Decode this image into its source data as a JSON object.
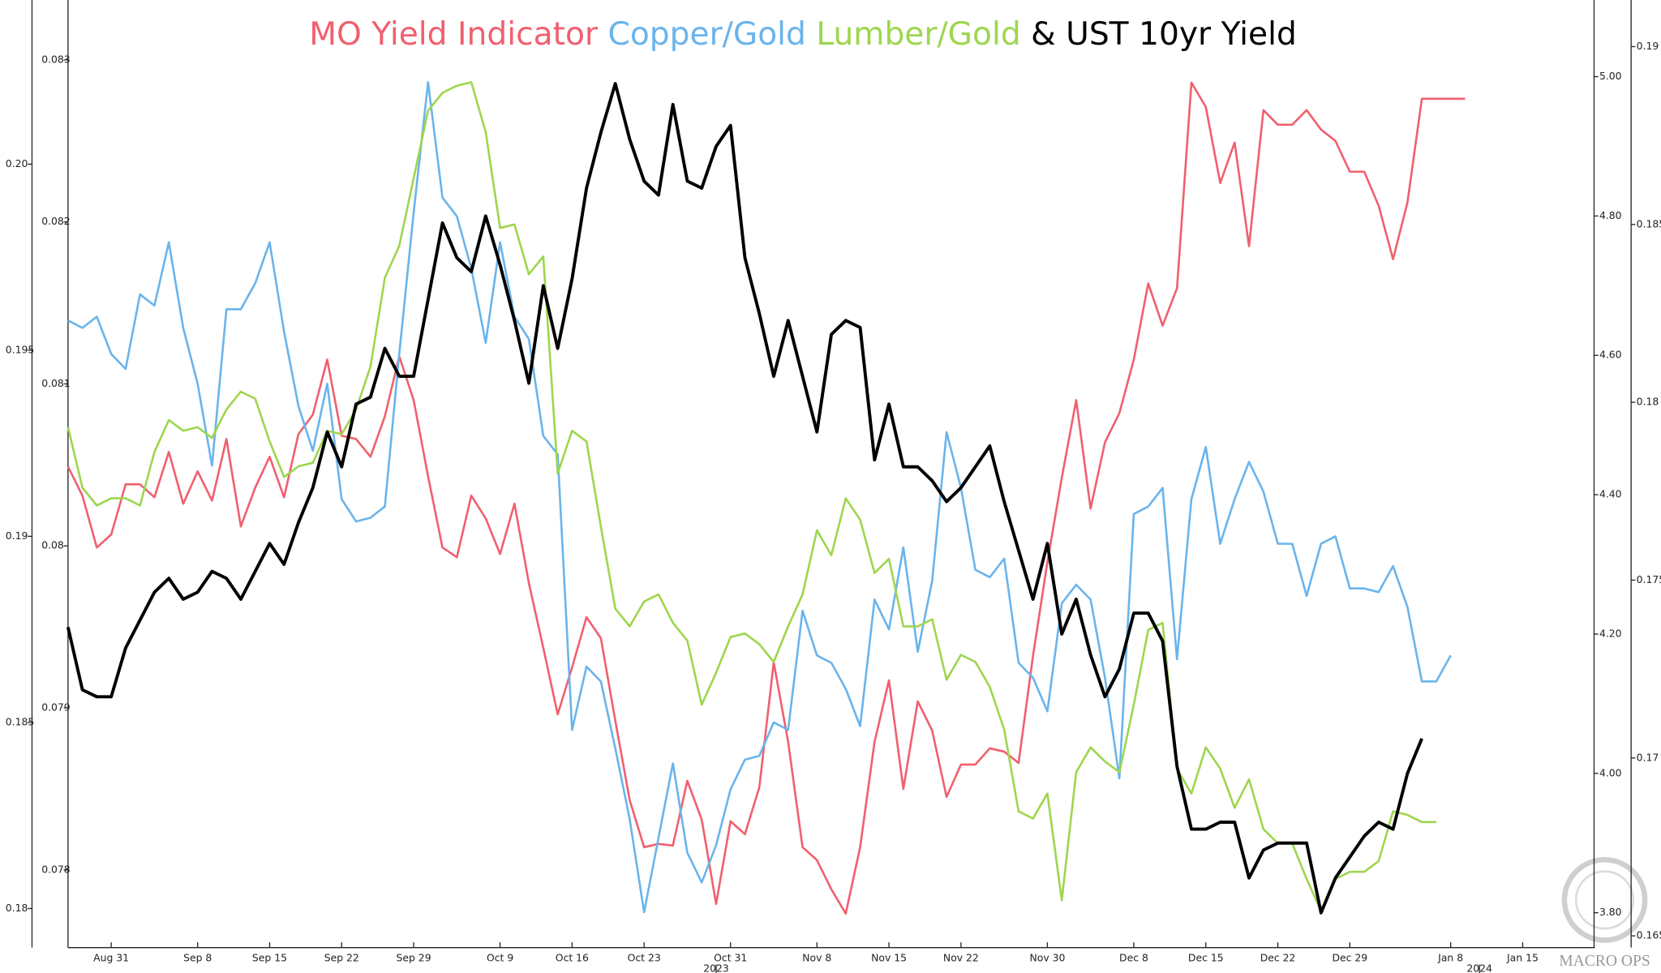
{
  "chart_data": {
    "type": "line",
    "title_conjunction": "&",
    "watermark": "MACRO OPS",
    "x": [
      0,
      1,
      2,
      3,
      4,
      5,
      6,
      7,
      8,
      9,
      10,
      11,
      12,
      13,
      14,
      15,
      16,
      17,
      18,
      19,
      20,
      21,
      22,
      23,
      24,
      25,
      26,
      27,
      28,
      29,
      30,
      31,
      32,
      33,
      34,
      35,
      36,
      37,
      38,
      39,
      40,
      41,
      42,
      43,
      44,
      45,
      46,
      47,
      48,
      49,
      50,
      51,
      52,
      53,
      54,
      55,
      56,
      57,
      58,
      59,
      60,
      61,
      62,
      63,
      64,
      65,
      66,
      67,
      68,
      69,
      70,
      71,
      72,
      73,
      74,
      75,
      76,
      77,
      78,
      79,
      80,
      81,
      82,
      83,
      84,
      85,
      86,
      87,
      88,
      89,
      90,
      91,
      92,
      93,
      94,
      95,
      96,
      97
    ],
    "xlim": [
      0,
      106
    ],
    "xticks": [
      {
        "value": 3,
        "label": "Aug 31"
      },
      {
        "value": 9,
        "label": "Sep 8"
      },
      {
        "value": 14,
        "label": "Sep 15"
      },
      {
        "value": 19,
        "label": "Sep 22"
      },
      {
        "value": 24,
        "label": "Sep 29"
      },
      {
        "value": 30,
        "label": "Oct 9"
      },
      {
        "value": 35,
        "label": "Oct 16"
      },
      {
        "value": 40,
        "label": "Oct 23"
      },
      {
        "value": 46,
        "label": "Oct 31"
      },
      {
        "value": 52,
        "label": "Nov 8"
      },
      {
        "value": 57,
        "label": "Nov 15"
      },
      {
        "value": 62,
        "label": "Nov 22"
      },
      {
        "value": 68,
        "label": "Nov 30"
      },
      {
        "value": 74,
        "label": "Dec 8"
      },
      {
        "value": 79,
        "label": "Dec 15"
      },
      {
        "value": 84,
        "label": "Dec 22"
      },
      {
        "value": 89,
        "label": "Dec 29"
      },
      {
        "value": 96,
        "label": "Jan 8"
      },
      {
        "value": 101,
        "label": "Jan 15"
      }
    ],
    "xticks_major": [
      {
        "value": 45,
        "label": "2023"
      },
      {
        "value": 98,
        "label": "2024"
      }
    ],
    "ylim": [
      0.17895,
      0.20441
    ],
    "yticks": [
      0.18,
      0.185,
      0.19,
      0.195,
      {
        "value": 0.2,
        "label": "0.20"
      }
    ],
    "y3lim": [
      0.07752,
      0.08337
    ],
    "y3ticks": [
      0.078,
      0.079,
      0.08,
      0.081,
      0.082,
      0.083
    ],
    "y2lim": [
      3.75,
      5.11
    ],
    "y2ticks": [
      {
        "value": 3.8,
        "label": "3.80"
      },
      {
        "value": 4,
        "label": "4.00"
      },
      {
        "value": 4.2,
        "label": "4.20"
      },
      {
        "value": 4.4,
        "label": "4.40"
      },
      {
        "value": 4.6,
        "label": "4.60"
      },
      {
        "value": 4.8,
        "label": "4.80"
      },
      {
        "value": 5,
        "label": "5.00"
      }
    ],
    "y4lim": [
      0.16467,
      0.19131
    ],
    "y4ticks": [
      0.165,
      0.17,
      0.175,
      0.18,
      0.185,
      0.19
    ],
    "series": [
      {
        "name": "MO Yield Indicator",
        "color": "#f0606e",
        "axis": "y3",
        "values": [
          0.08049,
          0.08031,
          0.07999,
          0.08007,
          0.08038,
          0.08038,
          0.0803,
          0.08058,
          0.08026,
          0.08046,
          0.08028,
          0.08066,
          0.08012,
          0.08036,
          0.08055,
          0.0803,
          0.08069,
          0.08081,
          0.08115,
          0.08068,
          0.08066,
          0.08055,
          0.0808,
          0.08117,
          0.0809,
          0.08043,
          0.07999,
          0.07993,
          0.08031,
          0.08017,
          0.07995,
          0.08026,
          0.07977,
          0.07937,
          0.07896,
          0.07925,
          0.07956,
          0.07943,
          0.07892,
          0.07843,
          0.07814,
          0.07816,
          0.07815,
          0.07855,
          0.07831,
          0.07779,
          0.0783,
          0.07822,
          0.07851,
          0.07928,
          0.07879,
          0.07814,
          0.07806,
          0.07788,
          0.07773,
          0.07814,
          0.07879,
          0.07917,
          0.0785,
          0.07904,
          0.07886,
          0.07845,
          0.07865,
          0.07865,
          0.07875,
          0.07873,
          0.07866,
          0.07932,
          0.0799,
          0.08042,
          0.0809,
          0.08023,
          0.08064,
          0.08082,
          0.08115,
          0.08162,
          0.08136,
          0.08159,
          0.08286,
          0.08271,
          0.08224,
          0.08249,
          0.08185,
          0.08269,
          0.0826,
          0.0826,
          0.08269,
          0.08257,
          0.0825,
          0.08231,
          0.08231,
          0.0821,
          0.08177,
          0.08212,
          0.08276,
          0.08276,
          0.08276,
          0.08276
        ]
      },
      {
        "name": "Copper/Gold",
        "color": "#6ab4ec",
        "axis": "y",
        "values": [
          0.1958,
          0.1956,
          0.1959,
          0.1949,
          0.1945,
          0.1965,
          0.1962,
          0.1979,
          0.1956,
          0.1941,
          0.1919,
          0.1961,
          0.1961,
          0.1968,
          0.1979,
          0.1955,
          0.1935,
          0.1923,
          0.1941,
          0.191,
          0.1904,
          0.1905,
          0.1908,
          0.1949,
          0.1987,
          0.2022,
          0.1991,
          0.1986,
          0.1972,
          0.1952,
          0.1979,
          0.1959,
          0.1953,
          0.1927,
          0.1922,
          0.1848,
          0.1865,
          0.1861,
          0.1843,
          0.1824,
          0.1799,
          0.1819,
          0.1839,
          0.1815,
          0.1807,
          0.1817,
          0.1832,
          0.184,
          0.1841,
          0.185,
          0.1848,
          0.188,
          0.1868,
          0.1866,
          0.1859,
          0.1849,
          0.1883,
          0.1875,
          0.1897,
          0.1869,
          0.1888,
          0.1928,
          0.1913,
          0.1891,
          0.1889,
          0.1894,
          0.1866,
          0.1862,
          0.1853,
          0.1882,
          0.1887,
          0.1883,
          0.1862,
          0.1835,
          0.1906,
          0.1908,
          0.1913,
          0.1867,
          0.191,
          0.1924,
          0.1898,
          0.191,
          0.192,
          0.1912,
          0.1898,
          0.1898,
          0.1884,
          0.1898,
          0.19,
          0.1886,
          0.1886,
          0.1885,
          0.1892,
          0.1881,
          0.1861,
          0.1861,
          0.1868,
          null
        ]
      },
      {
        "name": "Lumber/Gold",
        "color": "#9ed64e",
        "axis": "y4",
        "values": [
          0.1793,
          0.1776,
          0.1771,
          0.1773,
          0.1773,
          0.1771,
          0.1786,
          0.1795,
          0.1792,
          0.1793,
          0.179,
          0.1798,
          0.1803,
          0.1801,
          0.1789,
          0.1779,
          0.1782,
          0.1783,
          0.1792,
          0.1791,
          0.1798,
          0.181,
          0.1835,
          0.1844,
          0.1863,
          0.1882,
          0.1887,
          0.1889,
          0.189,
          0.1876,
          0.1849,
          0.185,
          0.1836,
          0.1841,
          0.178,
          0.1792,
          0.1789,
          0.1765,
          0.1742,
          0.1737,
          0.1744,
          0.1746,
          0.1738,
          0.1733,
          0.1715,
          0.1724,
          0.1734,
          0.1735,
          0.1732,
          0.1727,
          0.1737,
          0.1746,
          0.1764,
          0.1757,
          0.1773,
          0.1767,
          0.1752,
          0.1756,
          0.1737,
          0.1737,
          0.1739,
          0.1722,
          0.1729,
          0.1727,
          0.172,
          0.1708,
          0.1685,
          0.1683,
          0.169,
          0.166,
          0.1696,
          0.1703,
          0.1699,
          0.1696,
          0.1715,
          0.1736,
          0.1738,
          0.1697,
          0.169,
          0.1703,
          0.1697,
          0.1686,
          0.1694,
          0.168,
          0.1676,
          0.1676,
          0.1666,
          0.1657,
          0.1666,
          0.1668,
          0.1668,
          0.1671,
          0.1685,
          0.1684,
          0.1682,
          0.1682,
          null,
          null
        ]
      },
      {
        "name": "UST 10yr Yield",
        "color": "#000000",
        "axis": "y2",
        "values": [
          4.21,
          4.12,
          4.11,
          4.11,
          4.18,
          4.22,
          4.26,
          4.28,
          4.25,
          4.26,
          4.29,
          4.28,
          4.25,
          4.29,
          4.33,
          4.3,
          4.36,
          4.41,
          4.49,
          4.44,
          4.53,
          4.54,
          4.61,
          4.57,
          4.57,
          4.68,
          4.79,
          4.74,
          4.72,
          4.8,
          4.73,
          4.65,
          4.56,
          4.7,
          4.61,
          4.71,
          4.84,
          4.92,
          4.99,
          4.91,
          4.85,
          4.83,
          4.96,
          4.85,
          4.84,
          4.9,
          4.93,
          4.74,
          4.66,
          4.57,
          4.65,
          4.57,
          4.49,
          4.63,
          4.65,
          4.64,
          4.45,
          4.53,
          4.44,
          4.44,
          4.42,
          4.39,
          4.41,
          4.44,
          4.47,
          4.39,
          4.32,
          4.25,
          4.33,
          4.2,
          4.25,
          4.17,
          4.11,
          4.15,
          4.23,
          4.23,
          4.19,
          4.01,
          3.92,
          3.92,
          3.93,
          3.93,
          3.85,
          3.89,
          3.9,
          3.9,
          3.9,
          3.8,
          3.85,
          3.88,
          3.91,
          3.93,
          3.92,
          4.0,
          4.05,
          null,
          null,
          null
        ]
      }
    ]
  }
}
